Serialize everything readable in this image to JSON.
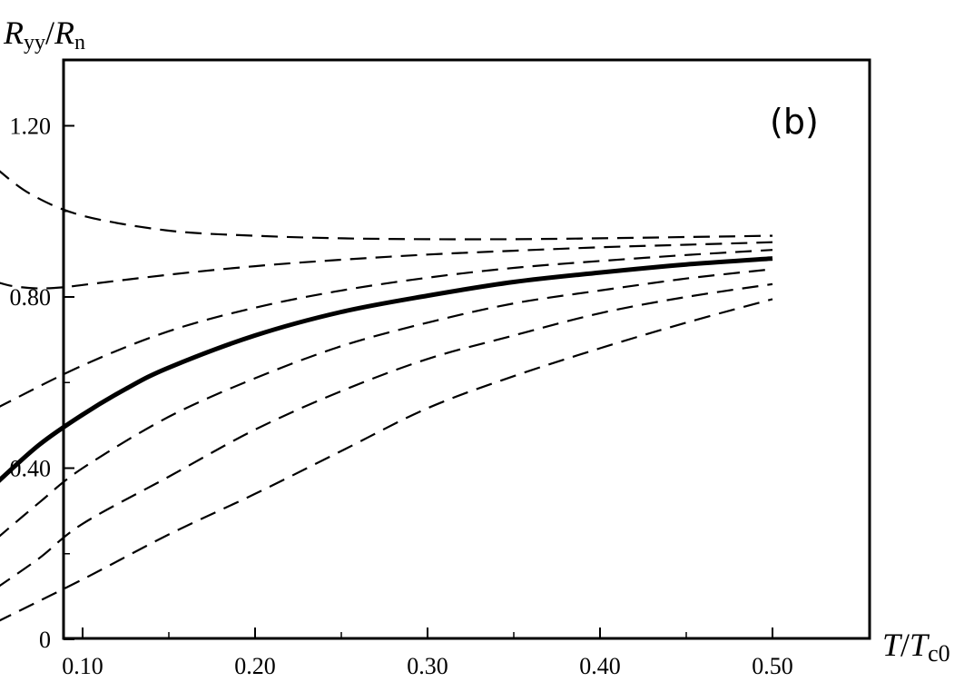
{
  "chart_data": {
    "type": "line",
    "panel_label": "(b)",
    "ylabel": {
      "base1": "R",
      "sub1": "yy",
      "slash": "/",
      "base2": "R",
      "sub2": "n"
    },
    "xlabel": {
      "base1": "T",
      "slash": "/",
      "base2": "T",
      "sub2": "c0"
    },
    "xlim": [
      0.05,
      0.5
    ],
    "ylim": [
      0,
      1.35
    ],
    "xticks": [
      0.1,
      0.2,
      0.3,
      0.4,
      0.5
    ],
    "xtick_labels": [
      "0.10",
      "0.20",
      "0.30",
      "0.40",
      "0.50"
    ],
    "yticks": [
      0,
      0.4,
      0.8,
      1.2
    ],
    "ytick_labels": [
      "0",
      "0.40",
      "0.80",
      "1.20"
    ],
    "minor_xticks": [
      0.05,
      0.15,
      0.25,
      0.35,
      0.45
    ],
    "minor_yticks": [
      0.2,
      0.6,
      1.0
    ],
    "grid": false,
    "series": [
      {
        "style": "dashed",
        "x": [
          0.05,
          0.07,
          0.1,
          0.15,
          0.2,
          0.25,
          0.3,
          0.35,
          0.4,
          0.45,
          0.5
        ],
        "y": [
          1.1,
          1.04,
          0.99,
          0.955,
          0.943,
          0.937,
          0.935,
          0.935,
          0.937,
          0.94,
          0.943
        ]
      },
      {
        "style": "dashed",
        "x": [
          0.05,
          0.06,
          0.075,
          0.09,
          0.1,
          0.15,
          0.2,
          0.25,
          0.3,
          0.35,
          0.4,
          0.45,
          0.5
        ],
        "y": [
          0.835,
          0.825,
          0.82,
          0.823,
          0.828,
          0.852,
          0.872,
          0.887,
          0.899,
          0.908,
          0.916,
          0.922,
          0.928
        ]
      },
      {
        "style": "dashed",
        "x": [
          0.05,
          0.1,
          0.15,
          0.2,
          0.25,
          0.3,
          0.35,
          0.4,
          0.45,
          0.5
        ],
        "y": [
          0.54,
          0.64,
          0.72,
          0.775,
          0.815,
          0.845,
          0.868,
          0.884,
          0.898,
          0.91
        ]
      },
      {
        "style": "solid",
        "x": [
          0.05,
          0.075,
          0.1,
          0.125,
          0.15,
          0.2,
          0.25,
          0.3,
          0.35,
          0.4,
          0.45,
          0.5
        ],
        "y": [
          0.365,
          0.455,
          0.525,
          0.585,
          0.635,
          0.71,
          0.765,
          0.803,
          0.835,
          0.857,
          0.876,
          0.89
        ]
      },
      {
        "style": "dashed",
        "x": [
          0.05,
          0.075,
          0.1,
          0.15,
          0.2,
          0.25,
          0.3,
          0.35,
          0.4,
          0.45,
          0.5
        ],
        "y": [
          0.235,
          0.32,
          0.4,
          0.52,
          0.61,
          0.685,
          0.74,
          0.785,
          0.815,
          0.843,
          0.865
        ]
      },
      {
        "style": "dashed",
        "x": [
          0.05,
          0.075,
          0.1,
          0.15,
          0.2,
          0.25,
          0.3,
          0.35,
          0.4,
          0.45,
          0.5
        ],
        "y": [
          0.12,
          0.19,
          0.27,
          0.38,
          0.49,
          0.58,
          0.655,
          0.71,
          0.762,
          0.8,
          0.83
        ]
      },
      {
        "style": "dashed",
        "x": [
          0.05,
          0.1,
          0.15,
          0.2,
          0.25,
          0.3,
          0.35,
          0.4,
          0.45,
          0.5
        ],
        "y": [
          0.04,
          0.14,
          0.245,
          0.34,
          0.44,
          0.54,
          0.615,
          0.68,
          0.74,
          0.795
        ]
      }
    ]
  }
}
